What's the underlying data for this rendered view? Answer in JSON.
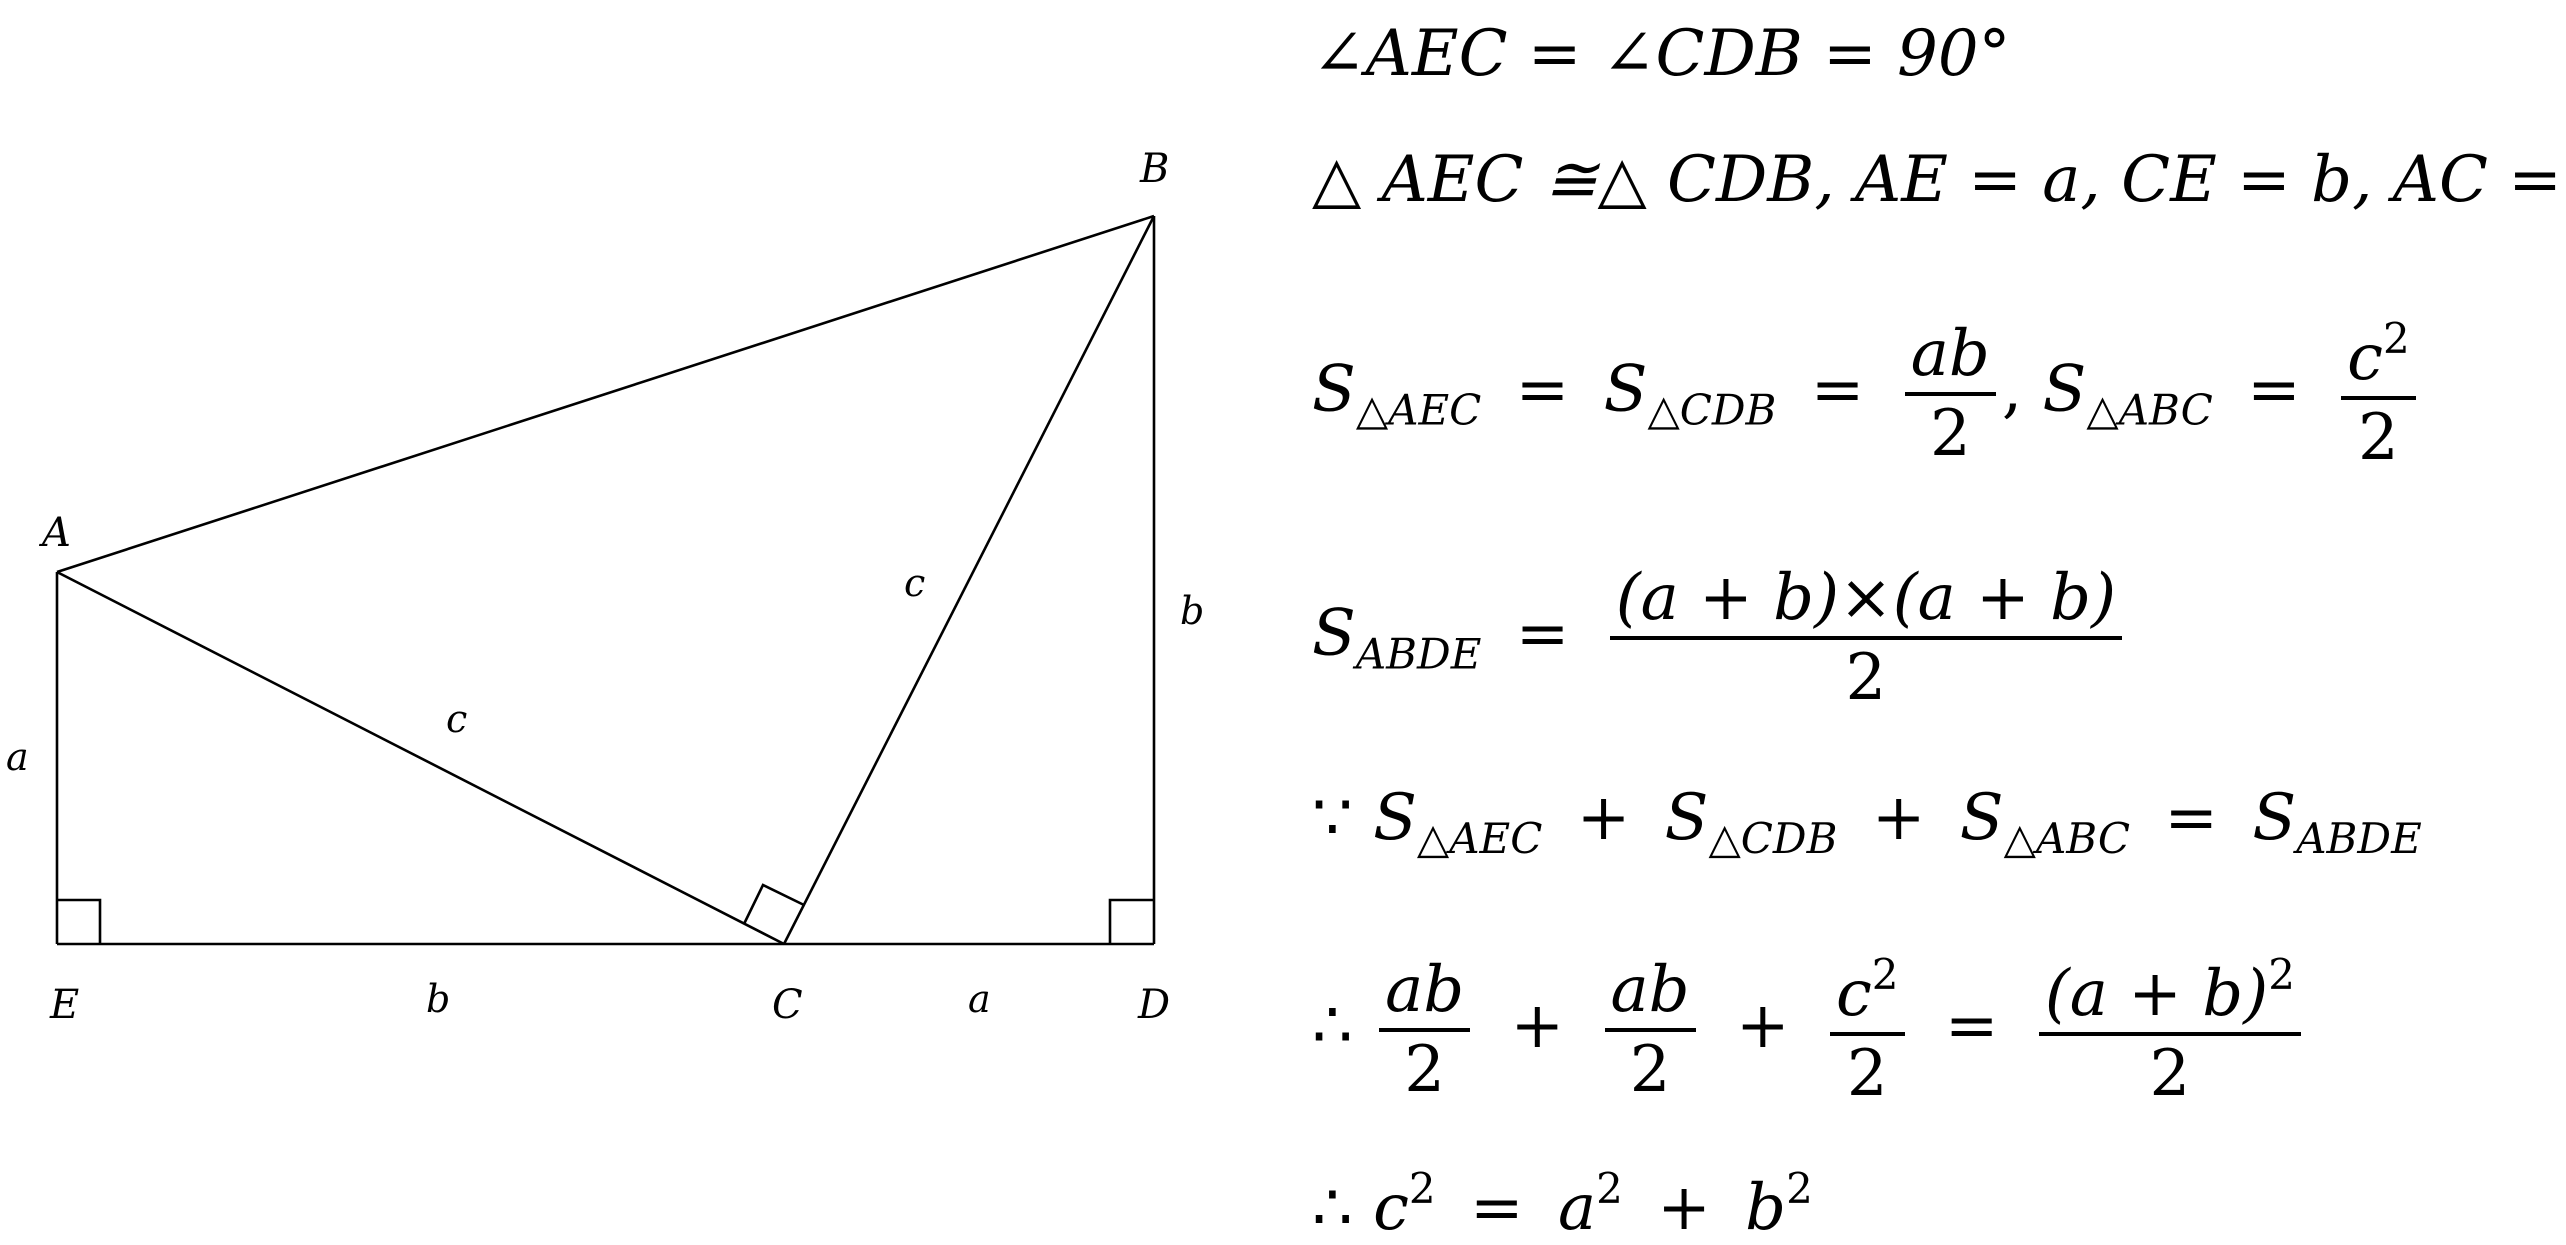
{
  "diagram": {
    "points": {
      "A": "A",
      "B": "B",
      "C": "C",
      "D": "D",
      "E": "E"
    },
    "side_labels": {
      "AE": "a",
      "EC": "b",
      "CD": "a",
      "BD": "b",
      "AC": "c",
      "CB": "c"
    }
  },
  "proof": {
    "line1": "∠AEC = ∠CDB = 90°",
    "line2": "△ AEC ≅△ CDB, AE = a, CE = b, AC = c",
    "line3": {
      "s_label": "S",
      "sub_aec": "△AEC",
      "sub_cdb": "△CDB",
      "sub_abc": "△ABC",
      "frac1_num": "ab",
      "frac1_den": "2",
      "frac2_num": "c",
      "frac2_num_exp": "2",
      "frac2_den": "2"
    },
    "line4": {
      "s_label": "S",
      "sub": "ABDE",
      "num": "(a + b)×(a + b)",
      "den": "2"
    },
    "line5": {
      "because": "∵",
      "s_label": "S",
      "sub_aec": "△AEC",
      "sub_cdb": "△CDB",
      "sub_abc": "△ABC",
      "sub_abde": "ABDE"
    },
    "line6": {
      "therefore": "∴",
      "f1_num": "ab",
      "f1_den": "2",
      "f2_num": "ab",
      "f2_den": "2",
      "f3_num": "c",
      "f3_exp": "2",
      "f3_den": "2",
      "rhs_num": "(a + b)",
      "rhs_exp": "2",
      "rhs_den": "2"
    },
    "line7": {
      "therefore": "∴",
      "c": "c",
      "a": "a",
      "b": "b",
      "exp": "2"
    }
  }
}
